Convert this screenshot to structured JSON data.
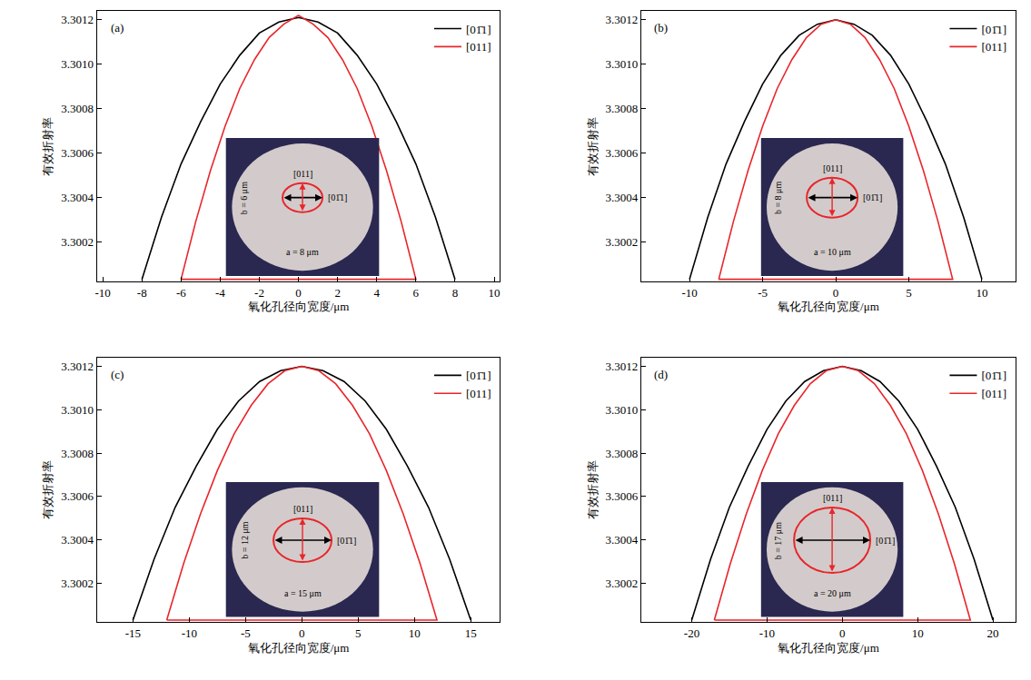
{
  "chart_data": [
    {
      "type": "line",
      "title": "(a)",
      "x_label": "氧化孔径向宽度/μm",
      "y_label": "有效折射率",
      "xlim": [
        -10.3,
        10.3
      ],
      "xticks": [
        -10,
        -8,
        -6,
        -4,
        -2,
        0,
        2,
        4,
        6,
        8,
        10
      ],
      "ylim": [
        3.30002,
        3.30124
      ],
      "yticks": [
        3.3002,
        3.3004,
        3.3006,
        3.3008,
        {
          "value": 3.301,
          "label": "3.3010"
        },
        3.3012
      ],
      "legend": "upper right",
      "series": [
        {
          "name": "[01̄1]",
          "color": "#000000",
          "x": [
            -8,
            -7,
            -6,
            -5,
            -4,
            -3,
            -2,
            -1,
            0,
            1,
            2,
            3,
            4,
            5,
            6,
            7,
            8
          ],
          "values": [
            3.30003,
            3.30031,
            3.30055,
            3.30074,
            3.30091,
            3.30104,
            3.30114,
            3.30119,
            3.30121,
            3.30119,
            3.30114,
            3.30104,
            3.30091,
            3.30074,
            3.30055,
            3.30031,
            3.30003
          ]
        },
        {
          "name": "[011]",
          "color": "#e8262b",
          "x": [
            -6,
            -5.25,
            -4.5,
            -3.75,
            -3,
            -2.25,
            -1.5,
            -0.75,
            0,
            0.75,
            1.5,
            2.25,
            3,
            3.75,
            4.5,
            5.25,
            6,
            -6
          ],
          "values": [
            3.30003,
            3.30029,
            3.30052,
            3.30072,
            3.30089,
            3.30102,
            3.30112,
            3.30118,
            3.30122,
            3.30118,
            3.30112,
            3.30102,
            3.30089,
            3.30072,
            3.30052,
            3.30029,
            3.30003,
            3.30003
          ]
        }
      ],
      "annotations": [
        "[011]",
        "[01̄1]",
        "b = 6 μm",
        "a = 8 μm"
      ]
    },
    {
      "type": "line",
      "title": "(b)",
      "x_label": "氧化孔径向宽度/μm",
      "y_label": "有效折射率",
      "xlim": [
        -13.3,
        12.3
      ],
      "xticks": [
        -10,
        -5,
        0,
        5,
        10
      ],
      "ylim": [
        3.30002,
        3.30124
      ],
      "yticks": [
        3.3002,
        3.3004,
        3.3006,
        3.3008,
        {
          "value": 3.301,
          "label": "3.3010"
        },
        3.3012
      ],
      "legend": "upper right",
      "series": [
        {
          "name": "[01̄1]",
          "color": "#000000",
          "x": [
            -10,
            -8.75,
            -7.5,
            -6.25,
            -5,
            -3.75,
            -2.5,
            -1.25,
            0,
            1.25,
            2.5,
            3.75,
            5,
            6.25,
            7.5,
            8.75,
            10
          ],
          "values": [
            3.30003,
            3.30031,
            3.30055,
            3.30074,
            3.30091,
            3.30104,
            3.30113,
            3.30118,
            3.3012,
            3.30118,
            3.30113,
            3.30104,
            3.30091,
            3.30074,
            3.30055,
            3.30031,
            3.30003
          ]
        },
        {
          "name": "[011]",
          "color": "#e8262b",
          "x": [
            -8,
            -7,
            -6,
            -5,
            -4,
            -3,
            -2,
            -1,
            0,
            1,
            2,
            3,
            4,
            5,
            6,
            7,
            8,
            -8
          ],
          "values": [
            3.30003,
            3.30029,
            3.30052,
            3.30072,
            3.30089,
            3.30102,
            3.30112,
            3.30118,
            3.3012,
            3.30118,
            3.30112,
            3.30102,
            3.30089,
            3.30072,
            3.30052,
            3.30029,
            3.30003,
            3.30003
          ]
        }
      ],
      "annotations": [
        "[011]",
        "[01̄1]",
        "b = 8 μm",
        "a = 10 μm"
      ]
    },
    {
      "type": "line",
      "title": "(c)",
      "x_label": "氧化孔径向宽度/μm",
      "y_label": "有效折射率",
      "xlim": [
        -18.2,
        17.6
      ],
      "xticks": [
        -15,
        -10,
        -5,
        0,
        5,
        10,
        15
      ],
      "ylim": [
        3.30002,
        3.30124
      ],
      "yticks": [
        3.3002,
        3.3004,
        3.3006,
        3.3008,
        {
          "value": 3.301,
          "label": "3.3010"
        },
        3.3012
      ],
      "legend": "upper right",
      "series": [
        {
          "name": "[01̄1]",
          "color": "#000000",
          "x": [
            -15,
            -13.125,
            -11.25,
            -9.375,
            -7.5,
            -5.625,
            -3.75,
            -1.875,
            0,
            1.875,
            3.75,
            5.625,
            7.5,
            9.375,
            11.25,
            13.125,
            15
          ],
          "values": [
            3.30003,
            3.30031,
            3.30055,
            3.30074,
            3.30091,
            3.30104,
            3.30113,
            3.30118,
            3.3012,
            3.30118,
            3.30113,
            3.30104,
            3.30091,
            3.30074,
            3.30055,
            3.30031,
            3.30003
          ]
        },
        {
          "name": "[011]",
          "color": "#e8262b",
          "x": [
            -12,
            -10.5,
            -9,
            -7.5,
            -6,
            -4.5,
            -3,
            -1.5,
            0,
            1.5,
            3,
            4.5,
            6,
            7.5,
            9,
            10.5,
            12,
            -12
          ],
          "values": [
            3.30003,
            3.30029,
            3.30052,
            3.30072,
            3.30089,
            3.30102,
            3.30112,
            3.30118,
            3.3012,
            3.30118,
            3.30112,
            3.30102,
            3.30089,
            3.30072,
            3.30052,
            3.30029,
            3.30003,
            3.30003
          ]
        }
      ],
      "annotations": [
        "[011]",
        "[01̄1]",
        "b = 12 μm",
        "a = 15 μm"
      ]
    },
    {
      "type": "line",
      "title": "(d)",
      "x_label": "氧化孔径向宽度/μm",
      "y_label": "有效折射率",
      "xlim": [
        -26.7,
        23
      ],
      "xticks": [
        -20,
        -10,
        0,
        10,
        20
      ],
      "ylim": [
        3.30002,
        3.30124
      ],
      "yticks": [
        3.3002,
        3.3004,
        3.3006,
        3.3008,
        {
          "value": 3.301,
          "label": "3.3010"
        },
        3.3012
      ],
      "legend": "upper right",
      "series": [
        {
          "name": "[01̄1]",
          "color": "#000000",
          "x": [
            -20,
            -17.5,
            -15,
            -12.5,
            -10,
            -7.5,
            -5,
            -2.5,
            0,
            2.5,
            5,
            7.5,
            10,
            12.5,
            15,
            17.5,
            20
          ],
          "values": [
            3.30003,
            3.30031,
            3.30055,
            3.30074,
            3.30091,
            3.30104,
            3.30113,
            3.30118,
            3.3012,
            3.30118,
            3.30113,
            3.30104,
            3.30091,
            3.30074,
            3.30055,
            3.30031,
            3.30003
          ]
        },
        {
          "name": "[011]",
          "color": "#e8262b",
          "x": [
            -17,
            -14.875,
            -12.75,
            -10.625,
            -8.5,
            -6.375,
            -4.25,
            -2.125,
            0,
            2.125,
            4.25,
            6.375,
            8.5,
            10.625,
            12.75,
            14.875,
            17,
            -17
          ],
          "values": [
            3.30003,
            3.30029,
            3.30052,
            3.30072,
            3.30089,
            3.30102,
            3.30112,
            3.30118,
            3.3012,
            3.30118,
            3.30112,
            3.30102,
            3.30089,
            3.30072,
            3.30052,
            3.30029,
            3.30003,
            3.30003
          ]
        }
      ],
      "annotations": [
        "[011]",
        "[01̄1]",
        "b = 17 μm",
        "a = 20 μm"
      ]
    }
  ]
}
